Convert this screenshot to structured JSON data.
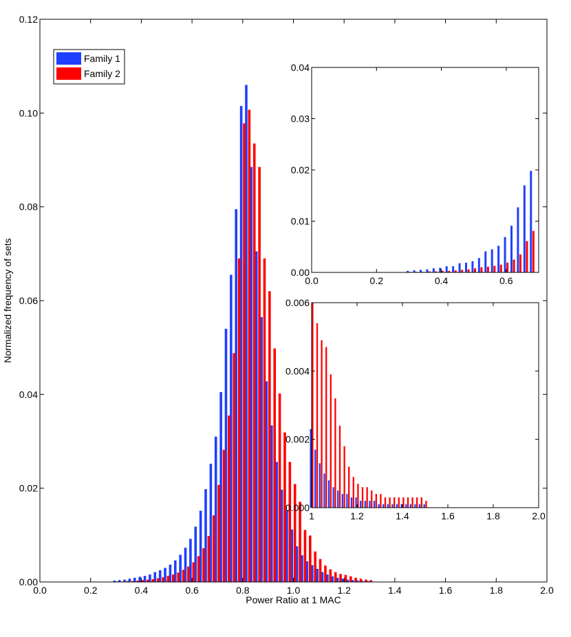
{
  "colors": {
    "family1": "#1f3fff",
    "family2": "#ff0000"
  },
  "chart_data": [
    {
      "id": "main",
      "type": "bar",
      "title": "",
      "xlabel": "Power Ratio at 1 MAC",
      "ylabel": "Normalized frequency of sets",
      "xlim": [
        0.0,
        2.0
      ],
      "ylim": [
        0.0,
        0.12
      ],
      "xticks": [
        "0.0",
        "0.2",
        "0.4",
        "0.6",
        "0.8",
        "1.0",
        "1.2",
        "1.4",
        "1.6",
        "1.8",
        "2.0"
      ],
      "yticks": [
        "0.00",
        "0.02",
        "0.04",
        "0.06",
        "0.08",
        "0.10",
        "0.12"
      ],
      "legend": {
        "placement": "top-left",
        "entries": [
          "Family 1",
          "Family 2"
        ]
      },
      "grid": false,
      "bin_width": 0.02,
      "x": [
        0.3,
        0.32,
        0.34,
        0.36,
        0.38,
        0.4,
        0.42,
        0.44,
        0.46,
        0.48,
        0.5,
        0.52,
        0.54,
        0.56,
        0.58,
        0.6,
        0.62,
        0.64,
        0.66,
        0.68,
        0.7,
        0.72,
        0.74,
        0.76,
        0.78,
        0.8,
        0.82,
        0.84,
        0.86,
        0.88,
        0.9,
        0.92,
        0.94,
        0.96,
        0.98,
        1.0,
        1.02,
        1.04,
        1.06,
        1.08,
        1.1,
        1.12,
        1.14,
        1.16,
        1.18,
        1.2,
        1.22,
        1.24,
        1.26,
        1.28,
        1.3
      ],
      "series": [
        {
          "name": "Family 1",
          "values": [
            0.0003,
            0.0004,
            0.0005,
            0.0007,
            0.0009,
            0.0011,
            0.0013,
            0.0016,
            0.0021,
            0.0025,
            0.003,
            0.0037,
            0.0046,
            0.0058,
            0.0073,
            0.0092,
            0.0118,
            0.0152,
            0.0198,
            0.0252,
            0.031,
            0.0405,
            0.054,
            0.0655,
            0.0795,
            0.1015,
            0.106,
            0.0885,
            0.0705,
            0.0565,
            0.0428,
            0.0334,
            0.0256,
            0.0197,
            0.0153,
            0.0112,
            0.0076,
            0.0057,
            0.0044,
            0.0036,
            0.0028,
            0.0021,
            0.0016,
            0.0012,
            0.0009,
            0.0007,
            0.0005,
            0.0004,
            0.0003,
            0.0002,
            0.0002
          ]
        },
        {
          "name": "Family 2",
          "values": [
            0.0001,
            0.0001,
            0.0002,
            0.0002,
            0.0003,
            0.0004,
            0.0005,
            0.0006,
            0.0008,
            0.001,
            0.0013,
            0.0016,
            0.002,
            0.0026,
            0.0033,
            0.0042,
            0.0055,
            0.0072,
            0.0098,
            0.0142,
            0.0207,
            0.0282,
            0.0355,
            0.0488,
            0.069,
            0.0978,
            0.1007,
            0.0935,
            0.0885,
            0.069,
            0.062,
            0.0498,
            0.0402,
            0.0319,
            0.0256,
            0.0209,
            0.0171,
            0.0111,
            0.0099,
            0.0065,
            0.0049,
            0.0035,
            0.0027,
            0.0021,
            0.0017,
            0.0015,
            0.0012,
            0.0009,
            0.0007,
            0.0005,
            0.0004
          ]
        }
      ]
    },
    {
      "id": "inset-low",
      "type": "bar",
      "title": "",
      "xlabel": "",
      "ylabel": "",
      "xlim": [
        0.0,
        0.7
      ],
      "ylim": [
        0.0,
        0.04
      ],
      "xticks": [
        "0.0",
        "0.2",
        "0.4",
        "0.6"
      ],
      "yticks": [
        "0.00",
        "0.01",
        "0.02",
        "0.03",
        "0.04"
      ],
      "grid": false,
      "bin_width": 0.02,
      "x": [
        0.3,
        0.32,
        0.34,
        0.36,
        0.38,
        0.4,
        0.42,
        0.44,
        0.46,
        0.48,
        0.5,
        0.52,
        0.54,
        0.56,
        0.58,
        0.6,
        0.62,
        0.64,
        0.66,
        0.68
      ],
      "series": [
        {
          "name": "Family 1",
          "values": [
            0.0003,
            0.0004,
            0.0005,
            0.0006,
            0.0008,
            0.0009,
            0.0012,
            0.0012,
            0.0018,
            0.0019,
            0.0022,
            0.0028,
            0.0041,
            0.0045,
            0.0052,
            0.0069,
            0.0091,
            0.0127,
            0.017,
            0.0198
          ]
        },
        {
          "name": "Family 2",
          "values": [
            0.0001,
            0.0001,
            0.0001,
            0.0002,
            0.0002,
            0.0003,
            0.0003,
            0.0004,
            0.0005,
            0.0006,
            0.0008,
            0.001,
            0.0011,
            0.0013,
            0.0015,
            0.0019,
            0.0025,
            0.0035,
            0.0061,
            0.0081
          ]
        }
      ]
    },
    {
      "id": "inset-high",
      "type": "bar",
      "title": "",
      "xlabel": "",
      "ylabel": "",
      "xlim": [
        1.0,
        2.0
      ],
      "ylim": [
        0.0,
        0.006
      ],
      "xticks": [
        "1",
        "1.2",
        "1.4",
        "1.6",
        "1.8",
        "2.0"
      ],
      "yticks": [
        "0.000",
        "0.002",
        "0.004",
        "0.006"
      ],
      "grid": false,
      "bin_width": 0.02,
      "x": [
        1.0,
        1.02,
        1.04,
        1.06,
        1.08,
        1.1,
        1.12,
        1.14,
        1.16,
        1.18,
        1.2,
        1.22,
        1.24,
        1.26,
        1.28,
        1.3,
        1.32,
        1.34,
        1.36,
        1.38,
        1.4,
        1.42,
        1.44,
        1.46,
        1.48,
        1.5
      ],
      "series": [
        {
          "name": "Family 1",
          "values": [
            0.0023,
            0.0017,
            0.0013,
            0.001,
            0.0008,
            0.0006,
            0.0005,
            0.0004,
            0.0004,
            0.0003,
            0.0003,
            0.0002,
            0.0002,
            0.0002,
            0.0002,
            0.0001,
            0.0001,
            0.0001,
            0.0001,
            0.0001,
            0.0001,
            0.0001,
            0.0001,
            0.0001,
            0.0001,
            0.0001
          ]
        },
        {
          "name": "Family 2",
          "values": [
            0.006,
            0.0054,
            0.0049,
            0.0047,
            0.0039,
            0.0032,
            0.0024,
            0.0018,
            0.0012,
            0.0009,
            0.0007,
            0.0006,
            0.0006,
            0.0005,
            0.0004,
            0.0004,
            0.0003,
            0.0003,
            0.0003,
            0.0003,
            0.0003,
            0.0003,
            0.0003,
            0.0003,
            0.0003,
            0.0002
          ]
        }
      ]
    }
  ]
}
